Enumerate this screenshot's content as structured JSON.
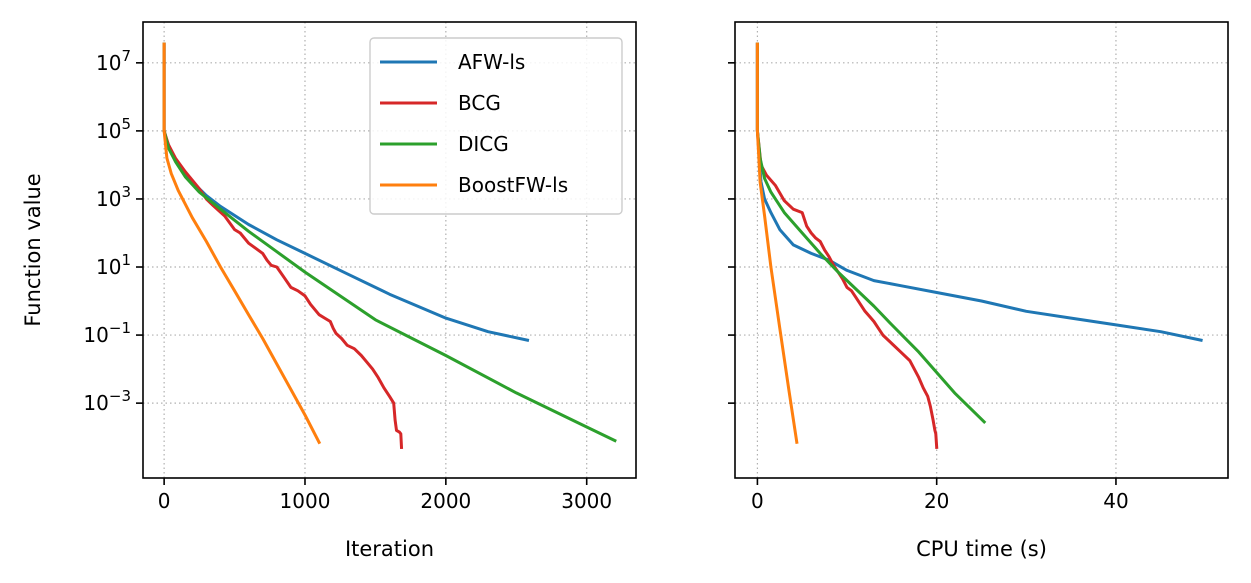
{
  "chart_data": [
    {
      "type": "line",
      "scale": {
        "x": "linear",
        "y": "log10"
      },
      "xlabel": "Iteration",
      "ylabel": "Function value",
      "xlim": [
        -150,
        3350
      ],
      "ylim_log10": [
        -5.2,
        8.2
      ],
      "xticks": [
        {
          "value": 0,
          "label": "0"
        },
        {
          "value": 1000,
          "label": "1000"
        },
        {
          "value": 2000,
          "label": "2000"
        },
        {
          "value": 3000,
          "label": "3000"
        }
      ],
      "yticks": [
        {
          "exp": 7,
          "base": "10",
          "sup": "7"
        },
        {
          "exp": 5,
          "base": "10",
          "sup": "5"
        },
        {
          "exp": 3,
          "base": "10",
          "sup": "3"
        },
        {
          "exp": 1,
          "base": "10",
          "sup": "1"
        },
        {
          "exp": -1,
          "base": "10",
          "sup": "−1"
        },
        {
          "exp": -3,
          "base": "10",
          "sup": "−3"
        }
      ],
      "grid": true,
      "legend_position": "top-right",
      "series": [
        {
          "name": "AFW-ls",
          "color": "#1f77b4",
          "x": [
            0,
            0,
            20,
            50,
            100,
            200,
            300,
            400,
            600,
            800,
            1000,
            1300,
            1600,
            2000,
            2300,
            2580
          ],
          "log10_y": [
            7.55,
            5.0,
            4.7,
            4.4,
            4.05,
            3.5,
            3.1,
            2.78,
            2.25,
            1.8,
            1.4,
            0.8,
            0.2,
            -0.5,
            -0.9,
            -1.15
          ]
        },
        {
          "name": "BCG",
          "color": "#d62728",
          "x": [
            0,
            0,
            30,
            80,
            150,
            250,
            300,
            350,
            430,
            500,
            540,
            600,
            650,
            700,
            730,
            760,
            800,
            850,
            900,
            950,
            1000,
            1040,
            1080,
            1100,
            1140,
            1180,
            1200,
            1220,
            1260,
            1300,
            1350,
            1400,
            1440,
            1480,
            1520,
            1560,
            1600,
            1630,
            1640,
            1650,
            1670,
            1680,
            1685
          ],
          "log10_y": [
            7.55,
            5.0,
            4.6,
            4.2,
            3.8,
            3.3,
            3.0,
            2.8,
            2.5,
            2.1,
            2.0,
            1.7,
            1.55,
            1.4,
            1.2,
            1.05,
            1.0,
            0.7,
            0.4,
            0.3,
            0.15,
            -0.1,
            -0.3,
            -0.4,
            -0.5,
            -0.6,
            -0.8,
            -0.95,
            -1.1,
            -1.3,
            -1.4,
            -1.6,
            -1.8,
            -2.0,
            -2.25,
            -2.55,
            -2.8,
            -3.0,
            -3.5,
            -3.8,
            -3.85,
            -3.9,
            -4.3
          ]
        },
        {
          "name": "DICG",
          "color": "#2ca02c",
          "x": [
            0,
            0,
            30,
            80,
            150,
            250,
            400,
            600,
            800,
            1000,
            1500,
            2000,
            2500,
            3000,
            3200
          ],
          "log10_y": [
            7.55,
            5.0,
            4.5,
            4.1,
            3.65,
            3.2,
            2.7,
            2.05,
            1.45,
            0.85,
            -0.55,
            -1.6,
            -2.7,
            -3.7,
            -4.1
          ]
        },
        {
          "name": "BoostFW-ls",
          "color": "#ff7f0e",
          "x": [
            0,
            0,
            20,
            50,
            100,
            200,
            300,
            400,
            500,
            600,
            700,
            800,
            900,
            1000,
            1100
          ],
          "log10_y": [
            7.55,
            5.0,
            4.2,
            3.75,
            3.25,
            2.45,
            1.75,
            1.0,
            0.3,
            -0.4,
            -1.1,
            -1.85,
            -2.6,
            -3.35,
            -4.15
          ]
        }
      ]
    },
    {
      "type": "line",
      "scale": {
        "x": "linear",
        "y": "log10"
      },
      "xlabel": "CPU time (s)",
      "ylabel": "",
      "xlim": [
        -2.5,
        52.5
      ],
      "ylim_log10": [
        -5.2,
        8.2
      ],
      "xticks": [
        {
          "value": 0,
          "label": "0"
        },
        {
          "value": 20,
          "label": "20"
        },
        {
          "value": 40,
          "label": "40"
        }
      ],
      "yticks_shared": true,
      "grid": true,
      "series": [
        {
          "name": "AFW-ls",
          "color": "#1f77b4",
          "x": [
            0,
            0,
            0.4,
            0.8,
            1.5,
            2.5,
            4,
            6,
            8,
            10,
            13,
            16,
            20,
            25,
            30,
            35,
            40,
            45,
            49.5
          ],
          "log10_y": [
            7.55,
            5.0,
            3.5,
            3.0,
            2.6,
            2.1,
            1.65,
            1.4,
            1.2,
            0.9,
            0.6,
            0.45,
            0.25,
            0.0,
            -0.3,
            -0.5,
            -0.7,
            -0.9,
            -1.15
          ]
        },
        {
          "name": "BCG",
          "color": "#d62728",
          "x": [
            0,
            0,
            0.4,
            1.0,
            2,
            3,
            4,
            5,
            5.5,
            6,
            6.5,
            7,
            7.5,
            8,
            8.5,
            9,
            9.5,
            10,
            10.5,
            11,
            11.5,
            12,
            12.5,
            13,
            13.5,
            14,
            15,
            16,
            17,
            17.5,
            18,
            18.5,
            19,
            19.3,
            19.6,
            19.8,
            19.9,
            20
          ],
          "log10_y": [
            7.55,
            5.0,
            4.0,
            3.7,
            3.4,
            2.95,
            2.7,
            2.6,
            2.2,
            2.0,
            1.85,
            1.75,
            1.5,
            1.3,
            1.05,
            0.85,
            0.65,
            0.4,
            0.3,
            0.1,
            -0.1,
            -0.3,
            -0.45,
            -0.6,
            -0.8,
            -1.0,
            -1.25,
            -1.5,
            -1.75,
            -2.0,
            -2.25,
            -2.55,
            -2.8,
            -3.1,
            -3.5,
            -3.8,
            -3.9,
            -4.3
          ]
        },
        {
          "name": "DICG",
          "color": "#2ca02c",
          "x": [
            0,
            0,
            0.3,
            0.8,
            1.5,
            3,
            5,
            7,
            9,
            11,
            13,
            15,
            18,
            20,
            22,
            25.3
          ],
          "log10_y": [
            7.55,
            5.0,
            4.2,
            3.6,
            3.2,
            2.6,
            2.0,
            1.4,
            0.85,
            0.35,
            -0.15,
            -0.7,
            -1.5,
            -2.1,
            -2.7,
            -3.55
          ]
        },
        {
          "name": "BoostFW-ls",
          "color": "#ff7f0e",
          "x": [
            0,
            0,
            0.3,
            0.8,
            1.5,
            2.5,
            3.5,
            4.4
          ],
          "log10_y": [
            7.55,
            5.0,
            3.5,
            2.5,
            1.0,
            -0.8,
            -2.6,
            -4.15
          ]
        }
      ]
    }
  ]
}
